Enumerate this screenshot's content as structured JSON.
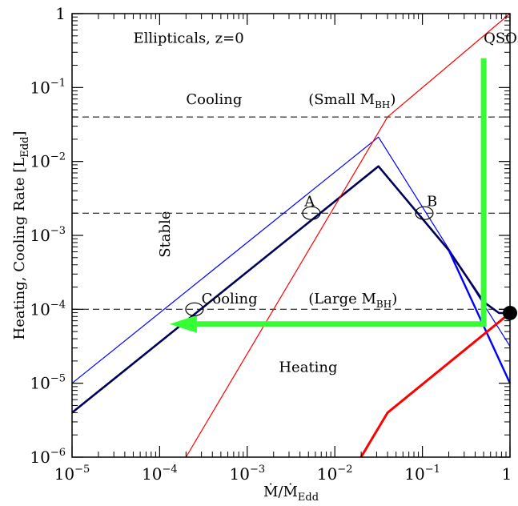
{
  "chart_data": {
    "type": "line",
    "xscale": "log",
    "yscale": "log",
    "xlim": [
      1e-05,
      1
    ],
    "ylim": [
      1e-06,
      1
    ],
    "xlabel": {
      "main": "Ṁ/Ṁ",
      "sub": "Edd"
    },
    "ylabel": {
      "main": "Heating, Cooling Rate [L",
      "sub": "Edd",
      "close": "]"
    },
    "x_ticks": [
      {
        "value": 1e-05,
        "base": "10",
        "exp": "−5"
      },
      {
        "value": 0.0001,
        "base": "10",
        "exp": "−4"
      },
      {
        "value": 0.001,
        "base": "10",
        "exp": "−3"
      },
      {
        "value": 0.01,
        "base": "10",
        "exp": "−2"
      },
      {
        "value": 0.1,
        "base": "10",
        "exp": "−1"
      },
      {
        "value": 1,
        "base": "1",
        "exp": ""
      }
    ],
    "y_ticks": [
      {
        "value": 1e-06,
        "base": "10",
        "exp": "−6"
      },
      {
        "value": 1e-05,
        "base": "10",
        "exp": "−5"
      },
      {
        "value": 0.0001,
        "base": "10",
        "exp": "−4"
      },
      {
        "value": 0.001,
        "base": "10",
        "exp": "−3"
      },
      {
        "value": 0.01,
        "base": "10",
        "exp": "−2"
      },
      {
        "value": 0.1,
        "base": "10",
        "exp": "−1"
      },
      {
        "value": 1,
        "base": "1",
        "exp": ""
      }
    ],
    "series": [
      {
        "color": "#0000ff",
        "width": 1.2,
        "dash": false,
        "points": [
          [
            1e-05,
            1e-05
          ],
          [
            0.0315,
            0.0214
          ],
          [
            1,
            3.16e-05
          ]
        ]
      },
      {
        "color": "#00005a",
        "width": 2.6,
        "dash": false,
        "points": [
          [
            1e-05,
            4e-06
          ],
          [
            0.0315,
            0.0086
          ],
          [
            0.2,
            0.000631
          ],
          [
            0.5,
            0.000126
          ],
          [
            0.75,
            8.91e-05
          ],
          [
            1,
            8.91e-05
          ]
        ]
      },
      {
        "color": "#0000ff",
        "width": 2.4,
        "dash": false,
        "points": [
          [
            0.2,
            0.000631
          ],
          [
            1,
            1e-05
          ]
        ]
      },
      {
        "color": "#ff0000",
        "width": 1.2,
        "dash": false,
        "points": [
          [
            0.0002,
            1e-06
          ],
          [
            0.04,
            0.04
          ],
          [
            1,
            1
          ]
        ]
      },
      {
        "color": "#ff0000",
        "width": 3,
        "dash": false,
        "points": [
          [
            0.0199,
            1e-06
          ],
          [
            0.04,
            4e-06
          ],
          [
            1,
            8.91e-05
          ]
        ]
      },
      {
        "color": "#000000",
        "width": 1,
        "dash": true,
        "points": [
          [
            1e-05,
            0.04
          ],
          [
            1,
            0.04
          ]
        ]
      },
      {
        "color": "#000000",
        "width": 1,
        "dash": true,
        "points": [
          [
            1e-05,
            0.002
          ],
          [
            1,
            0.002
          ]
        ]
      },
      {
        "color": "#000000",
        "width": 1,
        "dash": true,
        "points": [
          [
            1e-05,
            0.0001
          ],
          [
            1,
            0.0001
          ]
        ]
      }
    ],
    "arrows": [
      {
        "color": "#33ff33",
        "width": 7,
        "points": [
          [
            0.5,
            0.25
          ],
          [
            0.5,
            6.31e-05
          ],
          [
            0.00013,
            6.31e-05
          ]
        ]
      }
    ],
    "markers": [
      {
        "type": "ellipse",
        "x": 0.00025,
        "y": 0.0001
      },
      {
        "type": "ellipse",
        "x": 0.0054,
        "y": 0.002
      },
      {
        "type": "ellipse",
        "x": 0.105,
        "y": 0.002
      },
      {
        "type": "dot",
        "x": 1,
        "y": 8.91e-05
      }
    ],
    "annotations": [
      {
        "text": "Ellipticals, z=0",
        "x": 5e-05,
        "y": 0.4
      },
      {
        "text": "QSOs",
        "x": 0.5,
        "y": 0.4
      },
      {
        "text": "Cooling",
        "x": 0.0002,
        "y": 0.06
      },
      {
        "text": "(Small M",
        "sub": "BH",
        "close": ")",
        "x": 0.005,
        "y": 0.06
      },
      {
        "text": "A",
        "x": 0.0045,
        "y": 0.0025
      },
      {
        "text": "B",
        "x": 0.112,
        "y": 0.0025
      },
      {
        "text": "Stable",
        "x": 0.00013,
        "y": 0.0005,
        "rotate": -90
      },
      {
        "text": "Cooling",
        "x": 0.0003,
        "y": 0.00012
      },
      {
        "text": "(Large M",
        "sub": "BH",
        "close": ")",
        "x": 0.005,
        "y": 0.00012
      },
      {
        "text": "Heating",
        "x": 0.0023,
        "y": 1.43e-05
      }
    ]
  }
}
